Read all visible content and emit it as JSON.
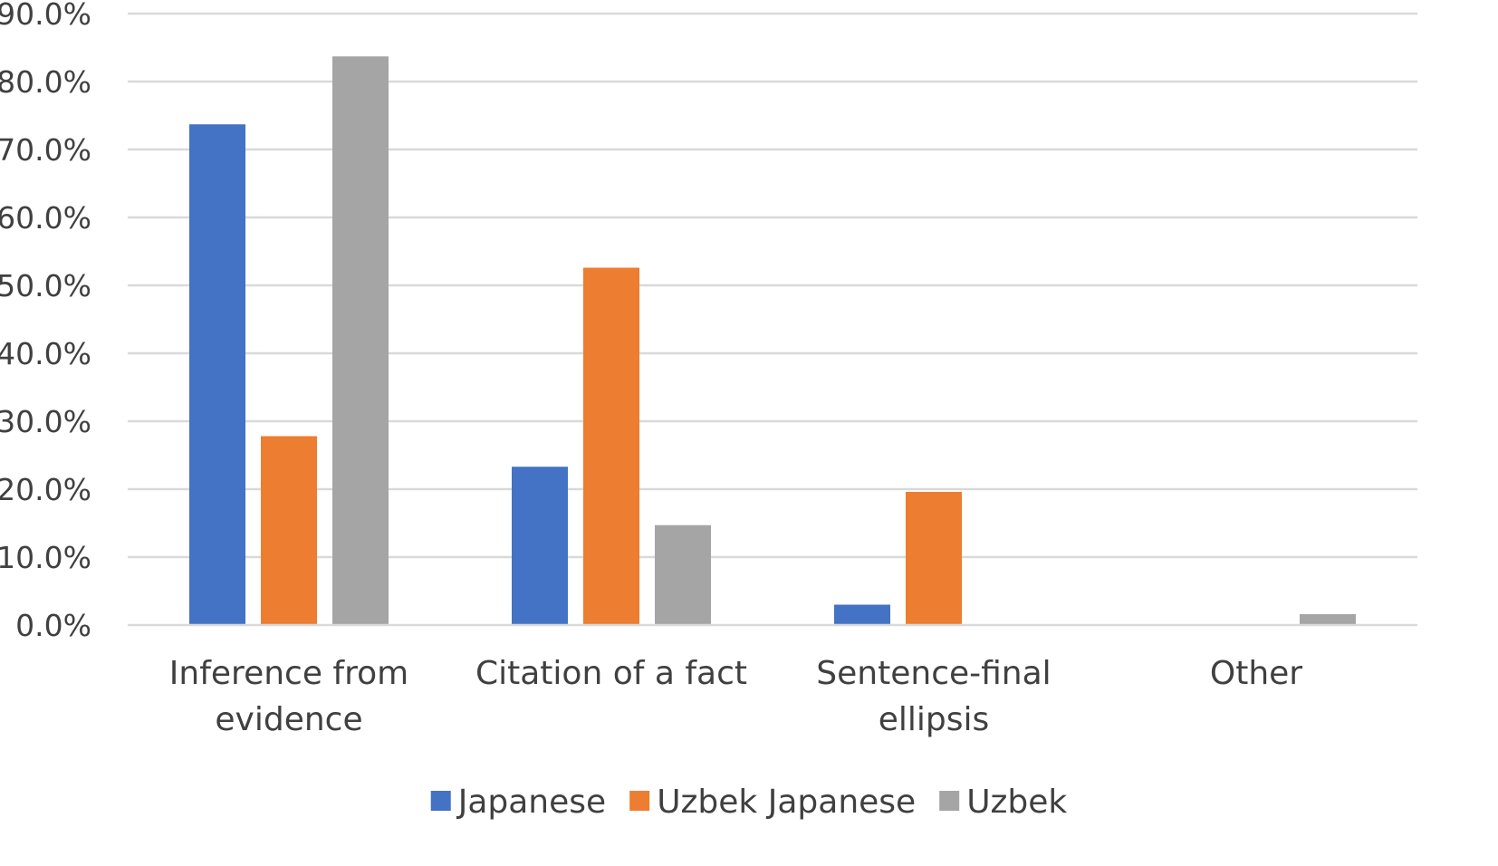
{
  "chart_data": {
    "type": "bar",
    "title": "",
    "xlabel": "",
    "ylabel": "",
    "categories": [
      [
        "Inference from",
        "evidence"
      ],
      [
        "Citation of a fact"
      ],
      [
        "Sentence-final",
        "ellipsis"
      ],
      [
        "Other"
      ]
    ],
    "series": [
      {
        "name": "Japanese",
        "color": "#4472C4",
        "values": [
          73.7,
          23.3,
          3.0,
          0.0
        ]
      },
      {
        "name": "Uzbek Japanese",
        "color": "#ED7D31",
        "values": [
          27.8,
          52.6,
          19.6,
          0.0
        ]
      },
      {
        "name": "Uzbek",
        "color": "#A5A5A5",
        "values": [
          83.7,
          14.7,
          0.0,
          1.6
        ]
      }
    ],
    "ylim": [
      0,
      90
    ],
    "yticks": [
      "0.0%",
      "10.0%",
      "20.0%",
      "30.0%",
      "40.0%",
      "50.0%",
      "60.0%",
      "70.0%",
      "80.0%",
      "90.0%"
    ],
    "grid": true,
    "legend_position": "bottom"
  }
}
